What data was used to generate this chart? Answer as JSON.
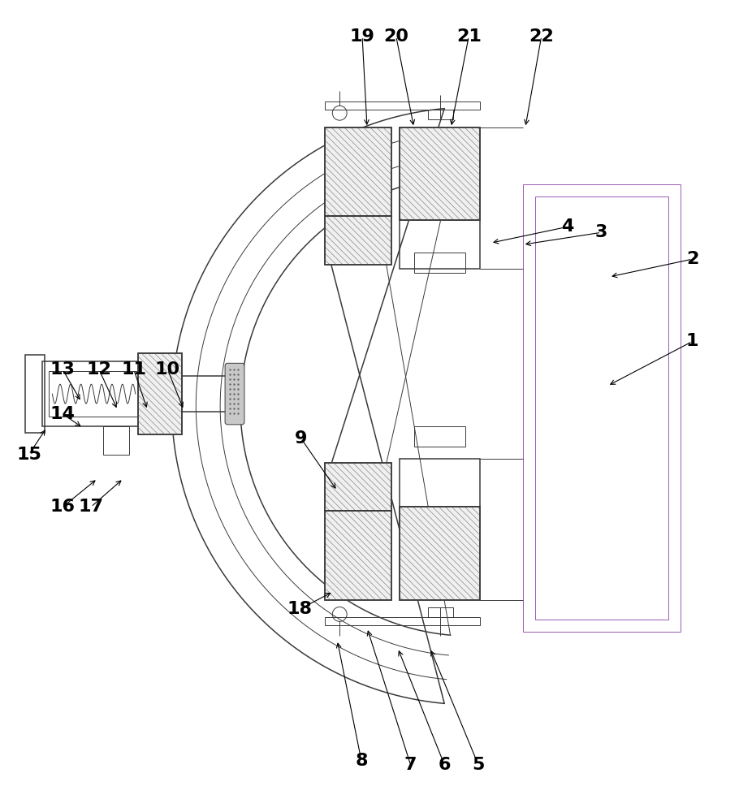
{
  "bg_color": "#ffffff",
  "line_color": "#3a3a3a",
  "label_color": "#000000",
  "fig_width": 9.1,
  "fig_height": 10.0,
  "dpi": 100,
  "thin": 0.7,
  "medium": 1.1,
  "thick": 1.5,
  "gray_fill": "#d8d8d8",
  "light_gray": "#eeeeee",
  "purple_line": "#9b59b6",
  "green_line": "#27ae60"
}
